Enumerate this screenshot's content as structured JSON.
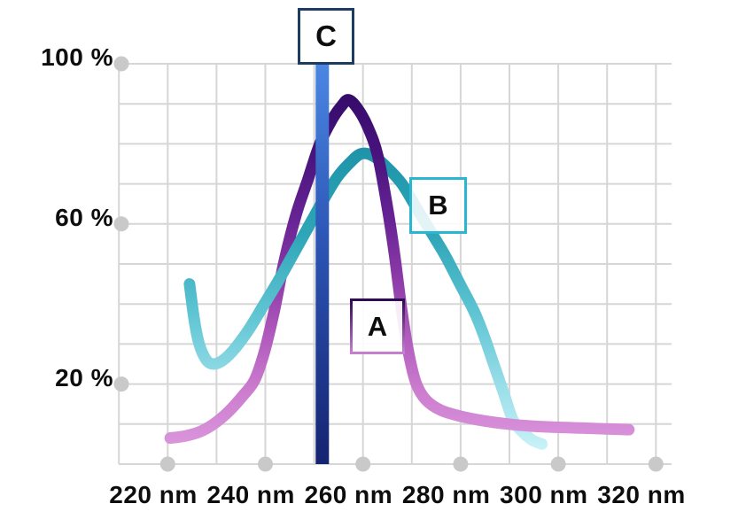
{
  "page": {
    "background": "#ffffff"
  },
  "labels": {
    "a": "A",
    "b": "B",
    "c": "C"
  },
  "style": {
    "grid_color": "#d6d6d6",
    "tick_dot_color": "#c9c9c9",
    "text_color": "#0d0d0d",
    "box_c_border": "#1d3c62",
    "box_b_border": "#29b6d2",
    "box_a_border_gradient": [
      "#2e0b52",
      "#c77fd0"
    ]
  },
  "chart_data": {
    "type": "line",
    "title": "",
    "x_unit": "nm",
    "y_unit": "%",
    "xlim": [
      213,
      327
    ],
    "ylim": [
      0,
      100
    ],
    "grid": true,
    "x_ticks": [
      220,
      240,
      260,
      280,
      300,
      320
    ],
    "x_tick_labels": [
      "220 nm",
      "240 nm",
      "260 nm",
      "280 nm",
      "300 nm",
      "320 nm"
    ],
    "y_ticks": [
      100,
      60,
      20
    ],
    "y_tick_labels": [
      "100 %",
      "60 %",
      "20 %"
    ],
    "series": [
      {
        "name": "B",
        "label": "B",
        "peak": {
          "wavelength_nm": 263,
          "value_pct": 77.5
        },
        "color_gradient_top_to_bottom": [
          "#1e93a8",
          "#2fa6b8",
          "#5ec4d2",
          "#97dde8",
          "#c9f2f8"
        ],
        "points": [
          [
            227.5,
            45
          ],
          [
            228.5,
            36
          ],
          [
            229.5,
            30
          ],
          [
            231,
            26
          ],
          [
            232.5,
            25
          ],
          [
            234.5,
            26
          ],
          [
            237,
            29
          ],
          [
            240,
            34
          ],
          [
            243,
            40
          ],
          [
            246,
            46
          ],
          [
            249,
            52.5
          ],
          [
            252,
            59
          ],
          [
            255,
            65.5
          ],
          [
            258,
            71.5
          ],
          [
            260.5,
            75
          ],
          [
            263,
            77.5
          ],
          [
            265.5,
            77
          ],
          [
            268.5,
            74
          ],
          [
            271.5,
            70
          ],
          [
            274.5,
            64
          ],
          [
            277.5,
            58
          ],
          [
            280.5,
            52
          ],
          [
            283.5,
            45
          ],
          [
            286.5,
            38
          ],
          [
            288.5,
            32
          ],
          [
            290.5,
            25
          ],
          [
            292.5,
            18
          ],
          [
            294.5,
            11
          ],
          [
            296.5,
            8
          ],
          [
            298.5,
            6
          ],
          [
            300.5,
            5
          ]
        ]
      },
      {
        "name": "A",
        "label": "A",
        "peak": {
          "wavelength_nm": 260.5,
          "value_pct": 91
        },
        "color_gradient_top_to_bottom": [
          "#330b68",
          "#48137c",
          "#662394",
          "#8a39a6",
          "#ae58bc",
          "#cb7cce",
          "#db96dc"
        ],
        "points": [
          [
            223.5,
            6.5
          ],
          [
            226.5,
            7
          ],
          [
            229.5,
            8
          ],
          [
            232.5,
            10
          ],
          [
            235.5,
            13
          ],
          [
            238.5,
            17
          ],
          [
            241,
            21
          ],
          [
            243,
            28
          ],
          [
            245,
            38
          ],
          [
            247,
            50
          ],
          [
            249.5,
            62
          ],
          [
            252,
            71
          ],
          [
            254.5,
            80
          ],
          [
            257,
            86
          ],
          [
            259,
            89.5
          ],
          [
            260.5,
            91
          ],
          [
            262.5,
            88.5
          ],
          [
            264.5,
            84
          ],
          [
            266.5,
            77
          ],
          [
            268.5,
            64
          ],
          [
            270,
            52
          ],
          [
            271.5,
            38
          ],
          [
            273,
            27
          ],
          [
            274.5,
            20
          ],
          [
            276.5,
            16
          ],
          [
            279.5,
            13.5
          ],
          [
            283.5,
            12
          ],
          [
            288.5,
            10.8
          ],
          [
            293.5,
            10
          ],
          [
            298.5,
            9.5
          ],
          [
            303.5,
            9.2
          ],
          [
            308.5,
            9
          ],
          [
            313.5,
            8.8
          ],
          [
            318.5,
            8.6
          ]
        ]
      }
    ],
    "marker_line": {
      "label": "C",
      "wavelength_nm": 255,
      "span_pct": [
        0,
        100
      ],
      "color_gradient_top_to_bottom": [
        "#4b87e3",
        "#2c55b4",
        "#152371"
      ]
    }
  }
}
